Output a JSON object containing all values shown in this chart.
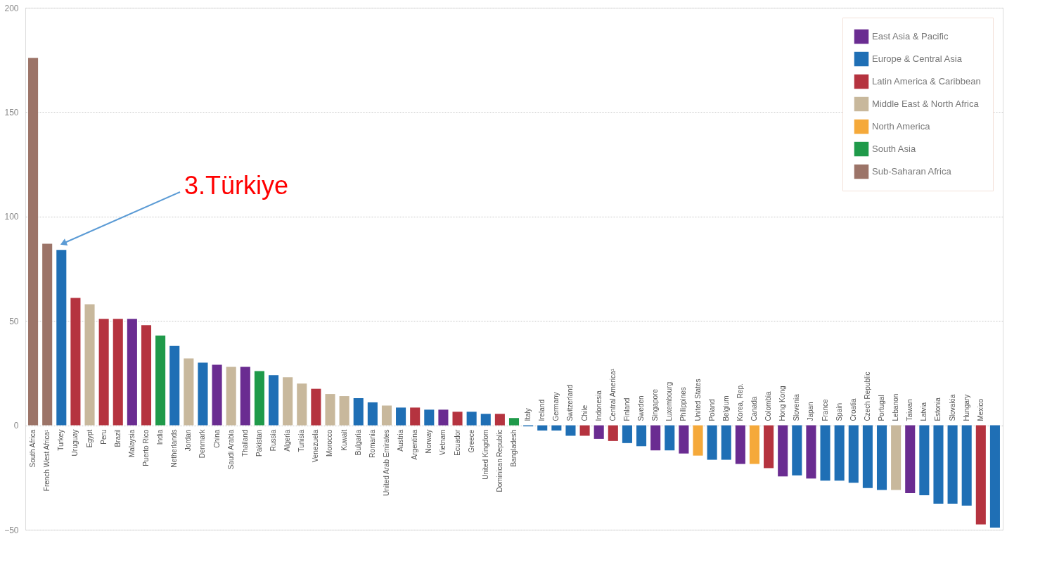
{
  "chart_data": {
    "type": "bar",
    "categories": [
      "South Africa",
      "French West Africa¹",
      "Turkey",
      "Uruguay",
      "Egypt",
      "Peru",
      "Brazil",
      "Malaysia",
      "Puerto Rico",
      "India",
      "Netherlands",
      "Jordan",
      "Denmark",
      "China",
      "Saudi Arabia",
      "Thailand",
      "Pakistan",
      "Russia",
      "Algeria",
      "Tunisia",
      "Venezuela",
      "Morocco",
      "Kuwait",
      "Bulgaria",
      "Romania",
      "United Arab Emirates",
      "Austria",
      "Argentina",
      "Norway",
      "Vietnam",
      "Ecuador",
      "Greece",
      "United Kingdom",
      "Dominican Republic",
      "Bangladesh",
      "Italy",
      "Ireland",
      "Germany",
      "Switzerland",
      "Chile",
      "Indonesia",
      "Central America¹",
      "Finland",
      "Sweden",
      "Singapore",
      "Luxembourg",
      "Philippines",
      "United States",
      "Poland",
      "Belgium",
      "Korea, Rep.",
      "Canada",
      "Colombia",
      "Hong Kong",
      "Slovenia",
      "Japan",
      "France",
      "Spain",
      "Croatia",
      "Czech Republic",
      "Portugal",
      "Lebanon",
      "Taiwan",
      "Latvia",
      "Estonia",
      "Slovakia",
      "Hungary",
      "Mexico",
      null
    ],
    "series": [
      {
        "name": "East Asia & Pacific",
        "color": "#6a2c91",
        "values": [
          null,
          null,
          null,
          null,
          null,
          null,
          null,
          51,
          null,
          null,
          null,
          null,
          null,
          29,
          null,
          28,
          null,
          null,
          null,
          null,
          null,
          null,
          null,
          null,
          null,
          null,
          null,
          null,
          null,
          7.5,
          null,
          null,
          null,
          null,
          null,
          null,
          null,
          null,
          null,
          null,
          -6.5,
          null,
          null,
          null,
          -12,
          null,
          -13.5,
          null,
          null,
          null,
          -18.5,
          null,
          null,
          -24.5,
          null,
          -25.5,
          null,
          null,
          null,
          null,
          null,
          null,
          -32.5,
          null,
          null,
          null,
          null,
          null,
          null
        ]
      },
      {
        "name": "Europe & Central Asia",
        "color": "#1f6fb5",
        "values": [
          null,
          null,
          84,
          null,
          null,
          null,
          null,
          null,
          null,
          null,
          38,
          null,
          30,
          null,
          null,
          null,
          null,
          24,
          null,
          null,
          null,
          null,
          null,
          13,
          11,
          null,
          8.5,
          null,
          7.5,
          null,
          null,
          6.5,
          5.5,
          null,
          null,
          -0.5,
          -2.5,
          -2.5,
          -5,
          null,
          null,
          null,
          -8.5,
          -10,
          null,
          -12,
          null,
          null,
          -16.5,
          -16.5,
          null,
          null,
          null,
          null,
          -24,
          null,
          -26.5,
          -26.5,
          -27.5,
          -30,
          -31,
          null,
          null,
          -33.5,
          -37.5,
          -37.5,
          -38.5,
          null,
          -49
        ]
      },
      {
        "name": "Latin America & Caribbean",
        "color": "#b5333f",
        "values": [
          null,
          null,
          null,
          61,
          null,
          51,
          51,
          null,
          48,
          null,
          null,
          null,
          null,
          null,
          null,
          null,
          null,
          null,
          null,
          null,
          17.5,
          null,
          null,
          null,
          null,
          null,
          null,
          8.5,
          null,
          null,
          6.5,
          null,
          null,
          5.5,
          null,
          null,
          null,
          null,
          null,
          -5,
          null,
          -7.5,
          null,
          null,
          null,
          null,
          null,
          null,
          null,
          null,
          null,
          null,
          -20.5,
          null,
          null,
          null,
          null,
          null,
          null,
          null,
          null,
          null,
          null,
          null,
          null,
          null,
          null,
          -47.5,
          null
        ]
      },
      {
        "name": "Middle East & North Africa",
        "color": "#c8b89c",
        "values": [
          null,
          null,
          null,
          null,
          58,
          null,
          null,
          null,
          null,
          null,
          null,
          32,
          null,
          null,
          28,
          null,
          null,
          null,
          23,
          20,
          null,
          15,
          14,
          null,
          null,
          9.5,
          null,
          null,
          null,
          null,
          null,
          null,
          null,
          null,
          null,
          null,
          null,
          null,
          null,
          null,
          null,
          null,
          null,
          null,
          null,
          null,
          null,
          null,
          null,
          null,
          null,
          null,
          null,
          null,
          null,
          null,
          null,
          null,
          null,
          null,
          null,
          -31,
          null,
          null,
          null,
          null,
          null,
          null,
          null
        ]
      },
      {
        "name": "North America",
        "color": "#f5a93a",
        "values": [
          null,
          null,
          null,
          null,
          null,
          null,
          null,
          null,
          null,
          null,
          null,
          null,
          null,
          null,
          null,
          null,
          null,
          null,
          null,
          null,
          null,
          null,
          null,
          null,
          null,
          null,
          null,
          null,
          null,
          null,
          null,
          null,
          null,
          null,
          null,
          null,
          null,
          null,
          null,
          null,
          null,
          null,
          null,
          null,
          null,
          null,
          null,
          -14.5,
          null,
          null,
          null,
          -18.5,
          null,
          null,
          null,
          null,
          null,
          null,
          null,
          null,
          null,
          null,
          null,
          null,
          null,
          null,
          null,
          null,
          null
        ]
      },
      {
        "name": "South Asia",
        "color": "#1f9a4a",
        "values": [
          null,
          null,
          null,
          null,
          null,
          null,
          null,
          null,
          null,
          43,
          null,
          null,
          null,
          null,
          null,
          null,
          26,
          null,
          null,
          null,
          null,
          null,
          null,
          null,
          null,
          null,
          null,
          null,
          null,
          null,
          null,
          null,
          null,
          null,
          3.5,
          null,
          null,
          null,
          null,
          null,
          null,
          null,
          null,
          null,
          null,
          null,
          null,
          null,
          null,
          null,
          null,
          null,
          null,
          null,
          null,
          null,
          null,
          null,
          null,
          null,
          null,
          null,
          null,
          null,
          null,
          null,
          null,
          null,
          null
        ]
      },
      {
        "name": "Sub-Saharan Africa",
        "color": "#9c7468",
        "values": [
          176,
          87,
          null,
          null,
          null,
          null,
          null,
          null,
          null,
          null,
          null,
          null,
          null,
          null,
          null,
          null,
          null,
          null,
          null,
          null,
          null,
          null,
          null,
          null,
          null,
          null,
          null,
          null,
          null,
          null,
          null,
          null,
          null,
          null,
          null,
          null,
          null,
          null,
          null,
          null,
          null,
          null,
          null,
          null,
          null,
          null,
          null,
          null,
          null,
          null,
          null,
          null,
          null,
          null,
          null,
          null,
          null,
          null,
          null,
          null,
          null,
          null,
          null,
          null,
          null,
          null,
          null,
          null,
          null
        ]
      }
    ],
    "ylim": [
      -50,
      200
    ],
    "yticks": [
      -50,
      0,
      50,
      100,
      150,
      200
    ],
    "grid": "y",
    "legend": "top right",
    "annotations": [
      "3.Türkiye"
    ]
  }
}
